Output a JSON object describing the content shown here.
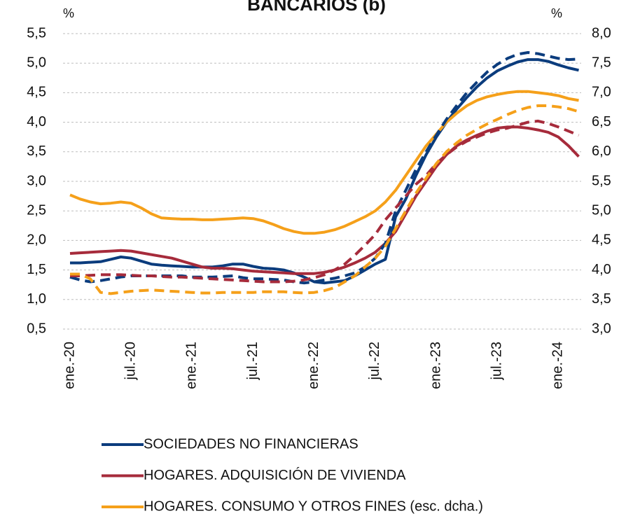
{
  "chart_data": {
    "type": "line",
    "title": "BANCARIOS (b)",
    "ylabel": "%",
    "y2label": "%",
    "categories": [
      "ene.-20",
      null,
      null,
      null,
      null,
      null,
      "jul.-20",
      null,
      null,
      null,
      null,
      null,
      "ene.-21",
      null,
      null,
      null,
      null,
      null,
      "jul.-21",
      null,
      null,
      null,
      null,
      null,
      "ene.-22",
      null,
      null,
      null,
      null,
      null,
      "jul.-22",
      null,
      null,
      null,
      null,
      null,
      "ene.-23",
      null,
      null,
      null,
      null,
      null,
      "jul.-23",
      null,
      null,
      null,
      null,
      null,
      "ene.-24",
      null,
      null
    ],
    "ylim": [
      0.5,
      5.5
    ],
    "yticks": [
      {
        "value": 0.5,
        "label": "0,5"
      },
      {
        "value": 1.0,
        "label": "1,0"
      },
      {
        "value": 1.5,
        "label": "1,5"
      },
      {
        "value": 2.0,
        "label": "2,0"
      },
      {
        "value": 2.5,
        "label": "2,5"
      },
      {
        "value": 3.0,
        "label": "3,0"
      },
      {
        "value": 3.5,
        "label": "3,5"
      },
      {
        "value": 4.0,
        "label": "4,0"
      },
      {
        "value": 4.5,
        "label": "4,5"
      },
      {
        "value": 5.0,
        "label": "5,0"
      },
      {
        "value": 5.5,
        "label": "5,5"
      }
    ],
    "y2lim": [
      3.0,
      8.0
    ],
    "y2ticks": [
      {
        "value": 3.0,
        "label": "3,0"
      },
      {
        "value": 3.5,
        "label": "3,5"
      },
      {
        "value": 4.0,
        "label": "4,0"
      },
      {
        "value": 4.5,
        "label": "4,5"
      },
      {
        "value": 5.0,
        "label": "5,0"
      },
      {
        "value": 5.5,
        "label": "5,5"
      },
      {
        "value": 6.0,
        "label": "6,0"
      },
      {
        "value": 6.5,
        "label": "6,5"
      },
      {
        "value": 7.0,
        "label": "7,0"
      },
      {
        "value": 7.5,
        "label": "7,5"
      },
      {
        "value": 8.0,
        "label": "8,0"
      }
    ],
    "grid": true,
    "legend": "bottom",
    "series": [
      {
        "name": "SOCIEDADES NO FINANCIERAS",
        "color": "#0b3c7d",
        "values": [
          1.62,
          1.62,
          1.63,
          1.64,
          1.68,
          1.72,
          1.7,
          1.65,
          1.6,
          1.58,
          1.57,
          1.56,
          1.55,
          1.55,
          1.55,
          1.57,
          1.6,
          1.6,
          1.56,
          1.53,
          1.52,
          1.5,
          1.45,
          1.38,
          1.3,
          1.28,
          1.3,
          1.32,
          1.4,
          1.5,
          1.6,
          1.68,
          2.4,
          2.7,
          3.1,
          3.45,
          3.75,
          4.0,
          4.22,
          4.42,
          4.6,
          4.75,
          4.87,
          4.95,
          5.02,
          5.06,
          5.06,
          5.03,
          4.97,
          4.92,
          4.88
        ]
      },
      {
        "name": "HOGARES. ADQUISICIÓN DE VIVIENDA",
        "color": "#a62b3b",
        "values": [
          1.78,
          1.79,
          1.8,
          1.81,
          1.82,
          1.83,
          1.82,
          1.79,
          1.76,
          1.73,
          1.7,
          1.65,
          1.6,
          1.55,
          1.53,
          1.53,
          1.52,
          1.5,
          1.48,
          1.47,
          1.46,
          1.45,
          1.44,
          1.44,
          1.44,
          1.46,
          1.5,
          1.55,
          1.62,
          1.7,
          1.8,
          1.95,
          2.15,
          2.45,
          2.75,
          3.0,
          3.25,
          3.45,
          3.6,
          3.7,
          3.78,
          3.85,
          3.9,
          3.92,
          3.92,
          3.9,
          3.87,
          3.83,
          3.75,
          3.6,
          3.42
        ]
      },
      {
        "name": "HOGARES. CONSUMO Y OTROS FINES (esc. dcha.)",
        "color": "#f5a01a",
        "axis": "y2",
        "values": [
          5.27,
          5.2,
          5.15,
          5.12,
          5.13,
          5.15,
          5.13,
          5.05,
          4.95,
          4.88,
          4.87,
          4.86,
          4.86,
          4.85,
          4.85,
          4.86,
          4.87,
          4.88,
          4.87,
          4.83,
          4.77,
          4.7,
          4.65,
          4.62,
          4.62,
          4.64,
          4.68,
          4.74,
          4.82,
          4.9,
          5.0,
          5.15,
          5.35,
          5.6,
          5.85,
          6.1,
          6.3,
          6.5,
          6.65,
          6.78,
          6.87,
          6.93,
          6.97,
          7.0,
          7.02,
          7.02,
          7.0,
          6.98,
          6.95,
          6.9,
          6.87
        ]
      },
      {
        "color": "#0b3c7d",
        "dash": true,
        "values": [
          1.38,
          1.33,
          1.3,
          1.32,
          1.35,
          1.38,
          1.4,
          1.4,
          1.4,
          1.4,
          1.4,
          1.4,
          1.38,
          1.38,
          1.38,
          1.39,
          1.4,
          1.37,
          1.35,
          1.35,
          1.34,
          1.33,
          1.3,
          1.28,
          1.3,
          1.33,
          1.36,
          1.4,
          1.45,
          1.55,
          1.7,
          1.95,
          2.5,
          2.85,
          3.2,
          3.5,
          3.78,
          4.05,
          4.28,
          4.5,
          4.68,
          4.85,
          4.98,
          5.08,
          5.15,
          5.18,
          5.16,
          5.12,
          5.08,
          5.06,
          5.07
        ]
      },
      {
        "color": "#a62b3b",
        "dash": true,
        "values": [
          1.4,
          1.4,
          1.41,
          1.42,
          1.42,
          1.42,
          1.41,
          1.4,
          1.4,
          1.39,
          1.38,
          1.38,
          1.37,
          1.36,
          1.35,
          1.34,
          1.33,
          1.32,
          1.31,
          1.3,
          1.3,
          1.3,
          1.31,
          1.33,
          1.37,
          1.42,
          1.5,
          1.6,
          1.75,
          1.92,
          2.1,
          2.35,
          2.55,
          2.75,
          2.95,
          3.1,
          3.3,
          3.45,
          3.58,
          3.68,
          3.75,
          3.82,
          3.87,
          3.9,
          3.95,
          4.0,
          4.02,
          3.98,
          3.92,
          3.85,
          3.78
        ]
      },
      {
        "color": "#f5a01a",
        "dash": true,
        "axis": "y2",
        "values": [
          3.93,
          3.93,
          3.85,
          3.62,
          3.6,
          3.62,
          3.64,
          3.65,
          3.66,
          3.65,
          3.64,
          3.63,
          3.62,
          3.61,
          3.61,
          3.62,
          3.62,
          3.62,
          3.62,
          3.63,
          3.63,
          3.63,
          3.62,
          3.61,
          3.62,
          3.65,
          3.7,
          3.8,
          3.9,
          4.05,
          4.2,
          4.4,
          4.7,
          5.0,
          5.3,
          5.55,
          5.8,
          6.0,
          6.15,
          6.28,
          6.38,
          6.47,
          6.55,
          6.63,
          6.7,
          6.75,
          6.78,
          6.78,
          6.76,
          6.73,
          6.68
        ]
      }
    ]
  }
}
